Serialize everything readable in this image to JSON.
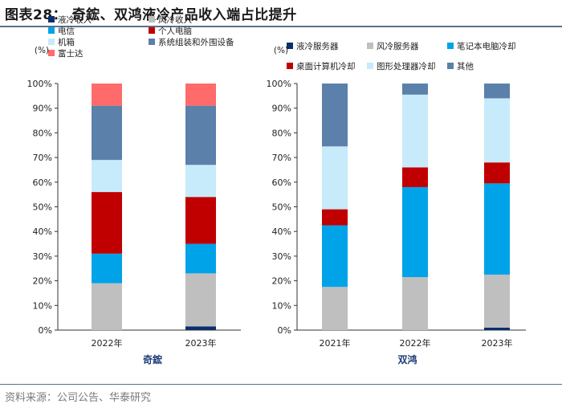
{
  "title": "图表28：  奇鋐、双鸿液冷产品收入端占比提升",
  "source": "资料来源：公司公告、华泰研究",
  "colors": {
    "title_line": "#5b6f8a",
    "axis": "#333333",
    "company_label": "#1f3f7a"
  },
  "chart_data": [
    {
      "type": "bar",
      "stacked": true,
      "company": "奇鋐",
      "unit_label": "(%)",
      "categories": [
        "2022年",
        "2023年"
      ],
      "ylim": [
        0,
        100
      ],
      "yticks": [
        "0%",
        "10%",
        "20%",
        "30%",
        "40%",
        "50%",
        "60%",
        "70%",
        "80%",
        "90%",
        "100%"
      ],
      "legend": [
        {
          "name": "液冷收入",
          "color": "#0b2f6b"
        },
        {
          "name": "风冷收入",
          "color": "#bfbfbf"
        },
        {
          "name": "电信",
          "color": "#00a3e8"
        },
        {
          "name": "个人电脑",
          "color": "#c00000"
        },
        {
          "name": "机箱",
          "color": "#c7ebfa"
        },
        {
          "name": "系统组装和外围设备",
          "color": "#5b80aa"
        },
        {
          "name": "富士达",
          "color": "#ff6b6b"
        }
      ],
      "series": [
        {
          "name": "液冷收入",
          "color": "#0b2f6b",
          "values": [
            0,
            1.5
          ]
        },
        {
          "name": "风冷收入",
          "color": "#bfbfbf",
          "values": [
            19,
            21.5
          ]
        },
        {
          "name": "电信",
          "color": "#00a3e8",
          "values": [
            12,
            12
          ]
        },
        {
          "name": "个人电脑",
          "color": "#c00000",
          "values": [
            25,
            19
          ]
        },
        {
          "name": "机箱",
          "color": "#c7ebfa",
          "values": [
            13,
            13
          ]
        },
        {
          "name": "系统组装和外围设备",
          "color": "#5b80aa",
          "values": [
            22,
            24
          ]
        },
        {
          "name": "富士达",
          "color": "#ff6b6b",
          "values": [
            9,
            9
          ]
        }
      ]
    },
    {
      "type": "bar",
      "stacked": true,
      "company": "双鸿",
      "unit_label": "(%)",
      "categories": [
        "2021年",
        "2022年",
        "2023年"
      ],
      "ylim": [
        0,
        100
      ],
      "yticks": [
        "0%",
        "10%",
        "20%",
        "30%",
        "40%",
        "50%",
        "60%",
        "70%",
        "80%",
        "90%",
        "100%"
      ],
      "legend": [
        {
          "name": "液冷服务器",
          "color": "#0b2f6b"
        },
        {
          "name": "风冷服务器",
          "color": "#bfbfbf"
        },
        {
          "name": "笔记本电脑冷却",
          "color": "#00a3e8"
        },
        {
          "name": "桌面计算机冷却",
          "color": "#c00000"
        },
        {
          "name": "图形处理器冷却",
          "color": "#c7ebfa"
        },
        {
          "name": "其他",
          "color": "#5b80aa"
        }
      ],
      "series": [
        {
          "name": "液冷服务器",
          "color": "#0b2f6b",
          "values": [
            0,
            0,
            1
          ]
        },
        {
          "name": "风冷服务器",
          "color": "#bfbfbf",
          "values": [
            17.5,
            21.5,
            21.5
          ]
        },
        {
          "name": "笔记本电脑冷却",
          "color": "#00a3e8",
          "values": [
            25,
            36.5,
            37
          ]
        },
        {
          "name": "桌面计算机冷却",
          "color": "#c00000",
          "values": [
            6.5,
            8,
            8.5
          ]
        },
        {
          "name": "图形处理器冷却",
          "color": "#c7ebfa",
          "values": [
            25.5,
            29.5,
            26
          ]
        },
        {
          "name": "其他",
          "color": "#5b80aa",
          "values": [
            25.5,
            4.5,
            6
          ]
        }
      ]
    }
  ]
}
